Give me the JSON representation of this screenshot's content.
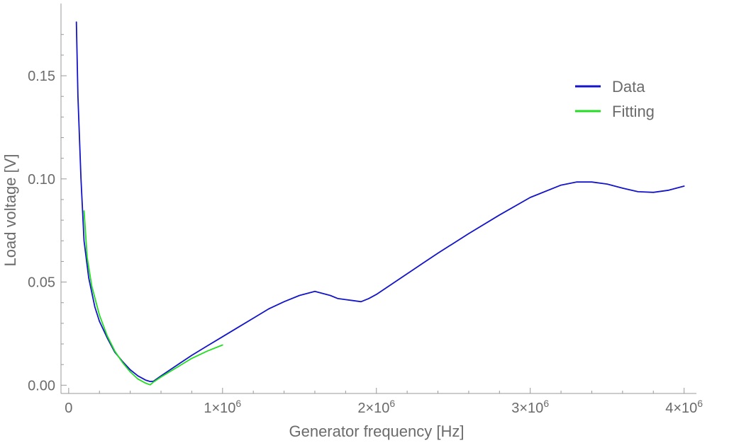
{
  "chart_data": {
    "type": "line",
    "xlabel": "Generator frequency [Hz]",
    "ylabel": "Load voltage [V]",
    "xlim": [
      -50000,
      4080000
    ],
    "ylim": [
      -0.004,
      0.185
    ],
    "x_ticks": [
      {
        "value": 0,
        "label": "0"
      },
      {
        "value": 1000000,
        "mant": "1",
        "exp": "6"
      },
      {
        "value": 2000000,
        "mant": "2",
        "exp": "6"
      },
      {
        "value": 3000000,
        "mant": "3",
        "exp": "6"
      },
      {
        "value": 4000000,
        "mant": "4",
        "exp": "6"
      }
    ],
    "y_ticks": [
      {
        "value": 0.0,
        "label": "0.00"
      },
      {
        "value": 0.05,
        "label": "0.05"
      },
      {
        "value": 0.1,
        "label": "0.10"
      },
      {
        "value": 0.15,
        "label": "0.15"
      }
    ],
    "legend": {
      "placement": "top-right"
    },
    "series": [
      {
        "name": "Data",
        "color": "#1414c8",
        "x": [
          50000,
          60000,
          80000,
          100000,
          130000,
          170000,
          200000,
          250000,
          300000,
          350000,
          400000,
          450000,
          500000,
          530000,
          550000,
          600000,
          700000,
          800000,
          900000,
          1000000,
          1100000,
          1200000,
          1300000,
          1400000,
          1500000,
          1600000,
          1700000,
          1750000,
          1800000,
          1850000,
          1900000,
          1950000,
          2000000,
          2100000,
          2200000,
          2300000,
          2400000,
          2600000,
          2800000,
          3000000,
          3200000,
          3300000,
          3400000,
          3500000,
          3600000,
          3700000,
          3800000,
          3900000,
          4000000
        ],
        "y": [
          0.176,
          0.14,
          0.1,
          0.07,
          0.052,
          0.038,
          0.031,
          0.023,
          0.016,
          0.0115,
          0.0075,
          0.0045,
          0.0025,
          0.0018,
          0.0019,
          0.0045,
          0.0095,
          0.0145,
          0.019,
          0.0235,
          0.028,
          0.0325,
          0.037,
          0.0405,
          0.0435,
          0.0455,
          0.0435,
          0.042,
          0.0415,
          0.041,
          0.0405,
          0.042,
          0.044,
          0.049,
          0.054,
          0.059,
          0.064,
          0.0735,
          0.0825,
          0.091,
          0.097,
          0.0985,
          0.0985,
          0.0975,
          0.0955,
          0.0938,
          0.0935,
          0.0945,
          0.0965
        ]
      },
      {
        "name": "Fitting",
        "color": "#22dd22",
        "x": [
          100000,
          120000,
          150000,
          200000,
          250000,
          300000,
          350000,
          400000,
          450000,
          500000,
          530000,
          550000,
          600000,
          700000,
          800000,
          900000,
          1000000
        ],
        "y": [
          0.0845,
          0.062,
          0.048,
          0.034,
          0.024,
          0.0165,
          0.011,
          0.0065,
          0.003,
          0.001,
          0.0002,
          0.0015,
          0.004,
          0.0085,
          0.013,
          0.0165,
          0.0195
        ]
      }
    ]
  }
}
